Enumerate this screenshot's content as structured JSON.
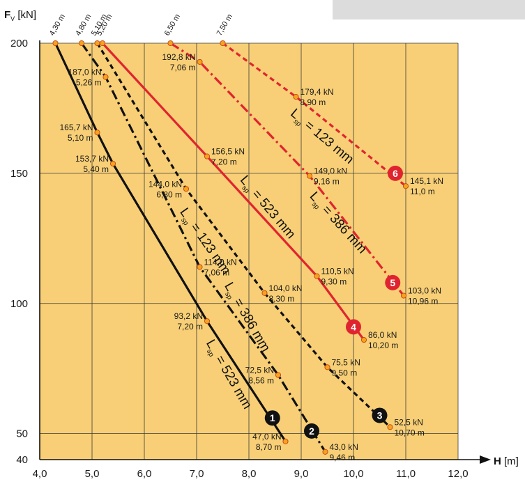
{
  "chart_data": {
    "type": "line",
    "title": "",
    "xlabel": "H",
    "xunit": "[m]",
    "ylabel": "F",
    "ylabel_sub": "V",
    "yunit": "[kN]",
    "xlim": [
      4.0,
      12.0
    ],
    "ylim": [
      40,
      200
    ],
    "x_ticks": [
      4.0,
      5.0,
      6.0,
      7.0,
      8.0,
      9.0,
      10.0,
      11.0,
      12.0
    ],
    "x_tick_labels": [
      "4,0",
      "5,0",
      "6,0",
      "7,0",
      "8,0",
      "9,0",
      "10,0",
      "11,0",
      "12,0"
    ],
    "y_ticks": [
      40,
      50,
      100,
      150,
      200
    ],
    "y_tick_labels": [
      "40",
      "50",
      "100",
      "150",
      "200"
    ],
    "plot_background": "#f8cf76",
    "grid": true,
    "series": [
      {
        "marker": "1",
        "color": "#111111",
        "dash": "solid",
        "points": [
          [
            4.3,
            200
          ],
          [
            5.1,
            165.7
          ],
          [
            5.4,
            153.7
          ],
          [
            7.2,
            93.2
          ],
          [
            8.7,
            47.0
          ]
        ]
      },
      {
        "marker": "2",
        "color": "#111111",
        "dash": "dashdot",
        "points": [
          [
            4.8,
            200
          ],
          [
            5.26,
            187.0
          ],
          [
            7.06,
            114.0
          ],
          [
            8.56,
            72.5
          ],
          [
            9.46,
            43.0
          ]
        ]
      },
      {
        "marker": "3",
        "color": "#111111",
        "dash": "dashed",
        "points": [
          [
            5.1,
            200
          ],
          [
            6.8,
            144.0
          ],
          [
            8.3,
            104.0
          ],
          [
            9.5,
            75.5
          ],
          [
            10.7,
            52.5
          ]
        ]
      },
      {
        "marker": "4",
        "color": "#e0242f",
        "dash": "solid",
        "points": [
          [
            5.2,
            200
          ],
          [
            7.2,
            156.5
          ],
          [
            9.3,
            110.5
          ],
          [
            10.2,
            86.0
          ]
        ]
      },
      {
        "marker": "5",
        "color": "#e0242f",
        "dash": "dashdot",
        "points": [
          [
            6.5,
            200
          ],
          [
            7.06,
            192.8
          ],
          [
            9.16,
            149.0
          ],
          [
            10.96,
            103.0
          ]
        ]
      },
      {
        "marker": "6",
        "color": "#e0242f",
        "dash": "dashed",
        "points": [
          [
            7.5,
            200
          ],
          [
            8.9,
            179.4
          ],
          [
            11.0,
            145.1
          ]
        ]
      }
    ],
    "point_labels": [
      {
        "x": 5.1,
        "y": 165.7,
        "kn": "165,7 kN",
        "m": "5,10 m",
        "side": "left"
      },
      {
        "x": 5.4,
        "y": 153.7,
        "kn": "153,7 kN",
        "m": "5,40 m",
        "side": "left"
      },
      {
        "x": 7.2,
        "y": 93.2,
        "kn": "93,2 kN",
        "m": "7,20 m",
        "side": "left"
      },
      {
        "x": 8.7,
        "y": 47.0,
        "kn": "47,0 kN",
        "m": "8,70 m",
        "side": "left"
      },
      {
        "x": 5.26,
        "y": 187.0,
        "kn": "187,0 kN",
        "m": "5,26 m",
        "side": "left"
      },
      {
        "x": 7.06,
        "y": 114.0,
        "kn": "114,0 kN",
        "m": "7,06 m",
        "side": "right"
      },
      {
        "x": 8.56,
        "y": 72.5,
        "kn": "72,5 kN",
        "m": "8,56 m",
        "side": "left"
      },
      {
        "x": 9.46,
        "y": 43.0,
        "kn": "43,0 kN",
        "m": "9,46 m",
        "side": "right"
      },
      {
        "x": 6.8,
        "y": 144.0,
        "kn": "144,0 kN",
        "m": "6,80 m",
        "side": "left"
      },
      {
        "x": 8.3,
        "y": 104.0,
        "kn": "104,0 kN",
        "m": "8,30 m",
        "side": "right"
      },
      {
        "x": 9.5,
        "y": 75.5,
        "kn": "75,5 kN",
        "m": "9,50 m",
        "side": "right"
      },
      {
        "x": 10.7,
        "y": 52.5,
        "kn": "52,5 kN",
        "m": "10,70 m",
        "side": "right"
      },
      {
        "x": 7.2,
        "y": 156.5,
        "kn": "156,5 kN",
        "m": "7,20 m",
        "side": "right"
      },
      {
        "x": 9.3,
        "y": 110.5,
        "kn": "110,5 kN",
        "m": "9,30 m",
        "side": "right"
      },
      {
        "x": 10.2,
        "y": 86.0,
        "kn": "86,0 kN",
        "m": "10,20 m",
        "side": "right"
      },
      {
        "x": 7.06,
        "y": 192.8,
        "kn": "192,8 kN",
        "m": "7,06 m",
        "side": "left"
      },
      {
        "x": 9.16,
        "y": 149.0,
        "kn": "149,0 kN",
        "m": "9,16 m",
        "side": "right"
      },
      {
        "x": 10.96,
        "y": 103.0,
        "kn": "103,0 kN",
        "m": "10,96 m",
        "side": "right"
      },
      {
        "x": 8.9,
        "y": 179.4,
        "kn": "179,4 kN",
        "m": "8,90 m",
        "side": "right"
      },
      {
        "x": 11.0,
        "y": 145.1,
        "kn": "145,1 kN",
        "m": "11,0 m",
        "side": "right"
      }
    ],
    "top_labels": [
      {
        "x": 4.3,
        "text": "4,30 m"
      },
      {
        "x": 4.8,
        "text": "4,80 m"
      },
      {
        "x": 5.1,
        "text": "5,10 m"
      },
      {
        "x": 5.2,
        "text": "5,20 m"
      },
      {
        "x": 6.5,
        "text": "6,50 m"
      },
      {
        "x": 7.5,
        "text": "7,50 m"
      }
    ],
    "marker_badges": [
      {
        "text": "1",
        "x": 8.45,
        "y": 56,
        "color": "#111111"
      },
      {
        "text": "2",
        "x": 9.2,
        "y": 51,
        "color": "#111111"
      },
      {
        "text": "3",
        "x": 10.5,
        "y": 57,
        "color": "#111111"
      },
      {
        "text": "4",
        "x": 10.0,
        "y": 91,
        "color": "#e0242f"
      },
      {
        "text": "5",
        "x": 10.75,
        "y": 108,
        "color": "#e0242f"
      },
      {
        "text": "6",
        "x": 10.8,
        "y": 150,
        "color": "#e0242f"
      }
    ],
    "annotations": [
      {
        "main": "L",
        "sub": "sp",
        "rest": " = 523 mm",
        "x": 7.55,
        "y": 72,
        "angle": 60
      },
      {
        "main": "L",
        "sub": "sp",
        "rest": " = 386 mm",
        "x": 7.9,
        "y": 94,
        "angle": 60
      },
      {
        "main": "L",
        "sub": "sp",
        "rest": " = 123 mm",
        "x": 7.1,
        "y": 123,
        "angle": 55
      },
      {
        "main": "L",
        "sub": "sp",
        "rest": " = 523 mm",
        "x": 8.3,
        "y": 136,
        "angle": 50
      },
      {
        "main": "L",
        "sub": "sp",
        "rest": " = 386 mm",
        "x": 9.65,
        "y": 130,
        "angle": 48
      },
      {
        "main": "L",
        "sub": "sp",
        "rest": " = 123 mm",
        "x": 9.35,
        "y": 163,
        "angle": 40
      }
    ]
  }
}
